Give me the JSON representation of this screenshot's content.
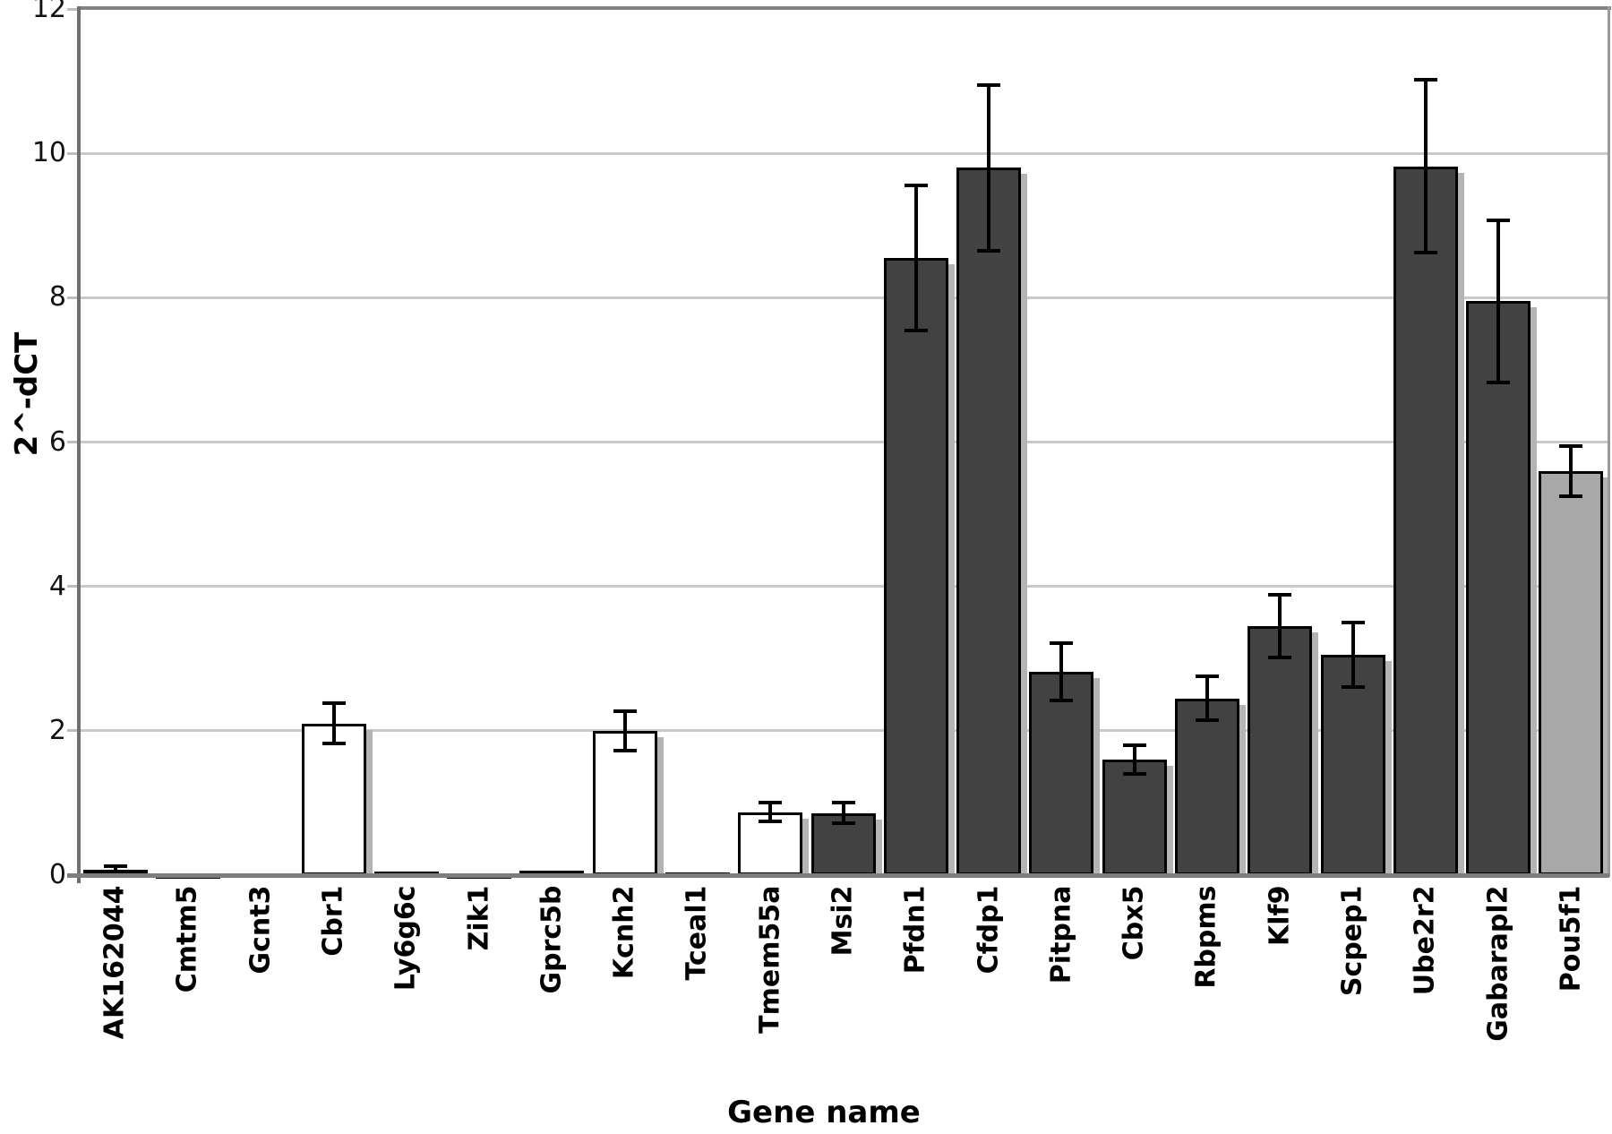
{
  "chart_data": {
    "type": "bar",
    "title": "",
    "xlabel": "Gene name",
    "ylabel": "2^-dCT",
    "ylim": [
      0,
      12
    ],
    "yticks": [
      0,
      2,
      4,
      6,
      8,
      10,
      12
    ],
    "grid": "horizontal-light-gray",
    "legend": "none",
    "categories": [
      "AK162044",
      "Cmtm5",
      "Gcnt3",
      "Cbr1",
      "Ly6g6c",
      "Zik1",
      "Gprc5b",
      "Kcnh2",
      "Tceal1",
      "Tmem55a",
      "Msi2",
      "Pfdn1",
      "Cfdp1",
      "Pitpna",
      "Cbx5",
      "Rbpms",
      "Klf9",
      "Scpep1",
      "Ube2r2",
      "Gabarapl2",
      "Pou5f1"
    ],
    "series": [
      {
        "name": "2^-dCT",
        "values": [
          0.08,
          0.03,
          0.0,
          2.1,
          0.05,
          0.03,
          0.06,
          2.0,
          0.04,
          0.87,
          0.86,
          8.55,
          9.8,
          2.82,
          1.6,
          2.45,
          3.45,
          3.05,
          9.82,
          7.95,
          5.6
        ],
        "errors": [
          0.05,
          0,
          0,
          0.28,
          0,
          0,
          0,
          0.27,
          0,
          0.13,
          0.14,
          1.0,
          1.15,
          0.4,
          0.2,
          0.3,
          0.43,
          0.45,
          1.2,
          1.12,
          0.35
        ],
        "bar_styles": [
          "white",
          "white",
          "white",
          "white",
          "white",
          "white",
          "white",
          "white",
          "white",
          "white",
          "dark",
          "dark",
          "dark",
          "dark",
          "dark",
          "dark",
          "dark",
          "dark",
          "dark",
          "dark",
          "light"
        ]
      }
    ],
    "colors": {
      "white_fill": "#ffffff",
      "dark_fill": "#424242",
      "light_fill": "#a8a8a8",
      "outline": "#000000",
      "shadow": "#b4b4b4",
      "gridline": "#c9c9c9",
      "axis": "#7d7d7d",
      "text": "#000000"
    }
  }
}
